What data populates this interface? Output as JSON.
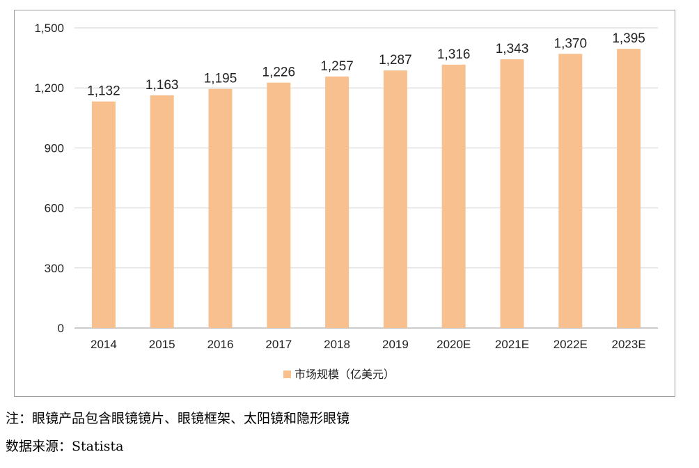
{
  "chart_data": {
    "type": "bar",
    "categories": [
      "2014",
      "2015",
      "2016",
      "2017",
      "2018",
      "2019",
      "2020E",
      "2021E",
      "2022E",
      "2023E"
    ],
    "series": [
      {
        "name": "市场规模（亿美元）",
        "values": [
          1132,
          1163,
          1195,
          1226,
          1257,
          1287,
          1316,
          1343,
          1370,
          1395
        ],
        "data_labels": [
          "1,132",
          "1,163",
          "1,195",
          "1,226",
          "1,257",
          "1,287",
          "1,316",
          "1,343",
          "1,370",
          "1,395"
        ]
      }
    ],
    "yticks": [
      0,
      300,
      600,
      900,
      1200,
      1500
    ],
    "ytick_labels": [
      "0",
      "300",
      "600",
      "900",
      "1,200",
      "1,500"
    ],
    "ylim": [
      0,
      1500
    ],
    "grid": true,
    "legend_position": "bottom",
    "bar_color": "#F8C08E",
    "grid_color": "#D0D0D0"
  },
  "notes": {
    "note_line": "注：眼镜产品包含眼镜镜片、眼镜框架、太阳镜和隐形眼镜",
    "source_line": "数据来源：Statista"
  }
}
